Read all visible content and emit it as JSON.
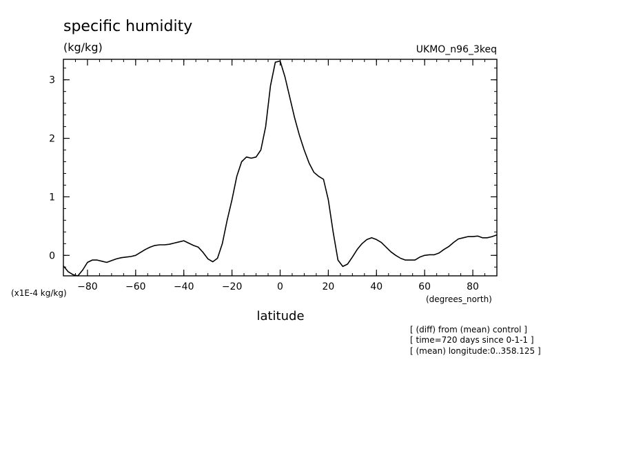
{
  "chart_data": {
    "type": "line",
    "title": "specific humidity",
    "units": "(kg/kg)",
    "dataset": "UKMO_n96_3keq",
    "xlabel": "latitude",
    "xunits": "(degrees_north)",
    "yscale_label": "(x1E-4 kg/kg)",
    "xlim": [
      -90,
      90
    ],
    "ylim": [
      -0.35,
      3.35
    ],
    "xticks": [
      -80,
      -60,
      -40,
      -20,
      0,
      20,
      40,
      60,
      80
    ],
    "yticks": [
      0,
      1,
      2,
      3
    ],
    "series": [
      {
        "name": "specific humidity",
        "x": [
          -90,
          -88,
          -86,
          -84,
          -82,
          -80,
          -78,
          -76,
          -74,
          -72,
          -70,
          -68,
          -66,
          -64,
          -62,
          -60,
          -58,
          -56,
          -54,
          -52,
          -50,
          -48,
          -46,
          -44,
          -42,
          -40,
          -38,
          -36,
          -34,
          -32,
          -30,
          -28,
          -26,
          -24,
          -22,
          -20,
          -18,
          -16,
          -14,
          -12,
          -10,
          -8,
          -6,
          -4,
          -2,
          0,
          2,
          4,
          6,
          8,
          10,
          12,
          14,
          16,
          18,
          20,
          22,
          24,
          26,
          28,
          30,
          32,
          34,
          36,
          38,
          40,
          42,
          44,
          46,
          48,
          50,
          52,
          54,
          56,
          58,
          60,
          62,
          64,
          66,
          68,
          70,
          72,
          74,
          76,
          78,
          80,
          82,
          84,
          86,
          88,
          90
        ],
        "y": [
          -0.18,
          -0.28,
          -0.33,
          -0.35,
          -0.25,
          -0.12,
          -0.08,
          -0.08,
          -0.1,
          -0.12,
          -0.09,
          -0.06,
          -0.04,
          -0.03,
          -0.02,
          0.0,
          0.05,
          0.1,
          0.14,
          0.17,
          0.18,
          0.18,
          0.19,
          0.21,
          0.23,
          0.25,
          0.21,
          0.17,
          0.14,
          0.05,
          -0.06,
          -0.11,
          -0.05,
          0.2,
          0.6,
          0.95,
          1.35,
          1.6,
          1.68,
          1.66,
          1.68,
          1.8,
          2.2,
          2.9,
          3.3,
          3.32,
          3.05,
          2.7,
          2.35,
          2.05,
          1.8,
          1.58,
          1.42,
          1.35,
          1.3,
          0.95,
          0.4,
          -0.08,
          -0.19,
          -0.15,
          -0.03,
          0.1,
          0.2,
          0.27,
          0.3,
          0.27,
          0.22,
          0.14,
          0.06,
          0.0,
          -0.05,
          -0.08,
          -0.08,
          -0.08,
          -0.03,
          0.0,
          0.01,
          0.01,
          0.04,
          0.1,
          0.15,
          0.22,
          0.28,
          0.3,
          0.32,
          0.32,
          0.33,
          0.3,
          0.3,
          0.32,
          0.35
        ]
      }
    ],
    "notes": [
      "[ (diff) from (mean) control ]",
      "[ time=720 days since 0-1-1 ]",
      "[ (mean) longitude:0..358.125 ]"
    ]
  }
}
